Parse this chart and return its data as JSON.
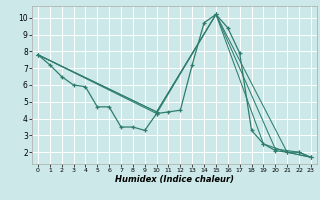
{
  "xlabel": "Humidex (Indice chaleur)",
  "bg_color": "#cce8e8",
  "grid_color": "#ffffff",
  "line_color": "#2e7d6e",
  "xlim": [
    -0.5,
    23.5
  ],
  "ylim": [
    1.3,
    10.7
  ],
  "yticks": [
    2,
    3,
    4,
    5,
    6,
    7,
    8,
    9,
    10
  ],
  "xticks": [
    0,
    1,
    2,
    3,
    4,
    5,
    6,
    7,
    8,
    9,
    10,
    11,
    12,
    13,
    14,
    15,
    16,
    17,
    18,
    19,
    20,
    21,
    22,
    23
  ],
  "main_x": [
    0,
    1,
    2,
    3,
    4,
    5,
    6,
    7,
    8,
    9,
    10,
    11,
    12,
    13,
    14,
    15,
    16,
    17,
    18,
    19,
    20,
    21,
    22,
    23
  ],
  "main_y": [
    7.8,
    7.2,
    6.5,
    6.0,
    5.9,
    4.7,
    4.7,
    3.5,
    3.5,
    3.3,
    4.3,
    4.4,
    4.5,
    7.2,
    9.7,
    10.2,
    9.4,
    7.9,
    3.3,
    2.5,
    2.1,
    2.0,
    2.0,
    1.7
  ],
  "sline1_x": [
    0,
    10,
    15,
    19,
    21,
    23
  ],
  "sline1_y": [
    7.8,
    4.4,
    10.2,
    2.5,
    2.0,
    1.7
  ],
  "sline2_x": [
    0,
    10,
    15,
    20,
    22,
    23
  ],
  "sline2_y": [
    7.8,
    4.4,
    10.2,
    2.2,
    2.0,
    1.7
  ],
  "sline3_x": [
    0,
    10,
    15,
    21,
    23
  ],
  "sline3_y": [
    7.8,
    4.3,
    10.2,
    2.0,
    1.7
  ]
}
